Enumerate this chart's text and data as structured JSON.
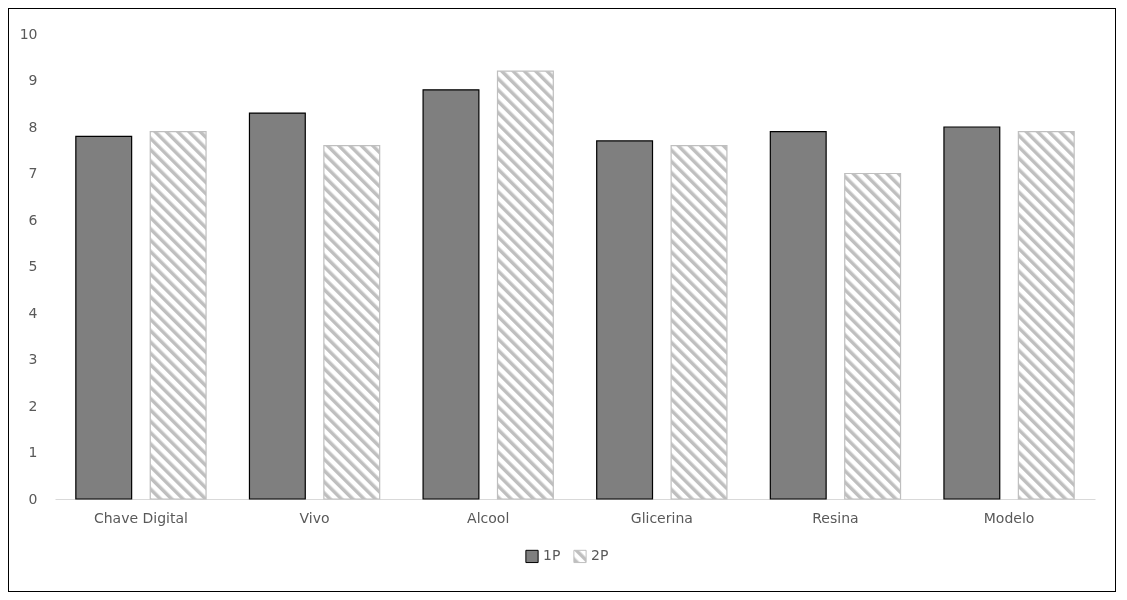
{
  "chart_data": {
    "type": "bar",
    "categories": [
      "Chave Digital",
      "Vivo",
      "Alcool",
      "Glicerina",
      "Resina",
      "Modelo"
    ],
    "series": [
      {
        "name": "1P",
        "color": "#7f7f7f",
        "values": [
          7.8,
          8.3,
          8.8,
          7.7,
          7.9,
          8.0
        ]
      },
      {
        "name": "2P",
        "color": "#bfbfbf",
        "values": [
          7.9,
          7.6,
          9.2,
          7.6,
          7.0,
          7.9
        ]
      }
    ],
    "ylim": [
      0,
      10
    ],
    "yticks": [
      0,
      1,
      2,
      3,
      4,
      5,
      6,
      7,
      8,
      9,
      10
    ],
    "grid": false,
    "legend": "bottom"
  }
}
